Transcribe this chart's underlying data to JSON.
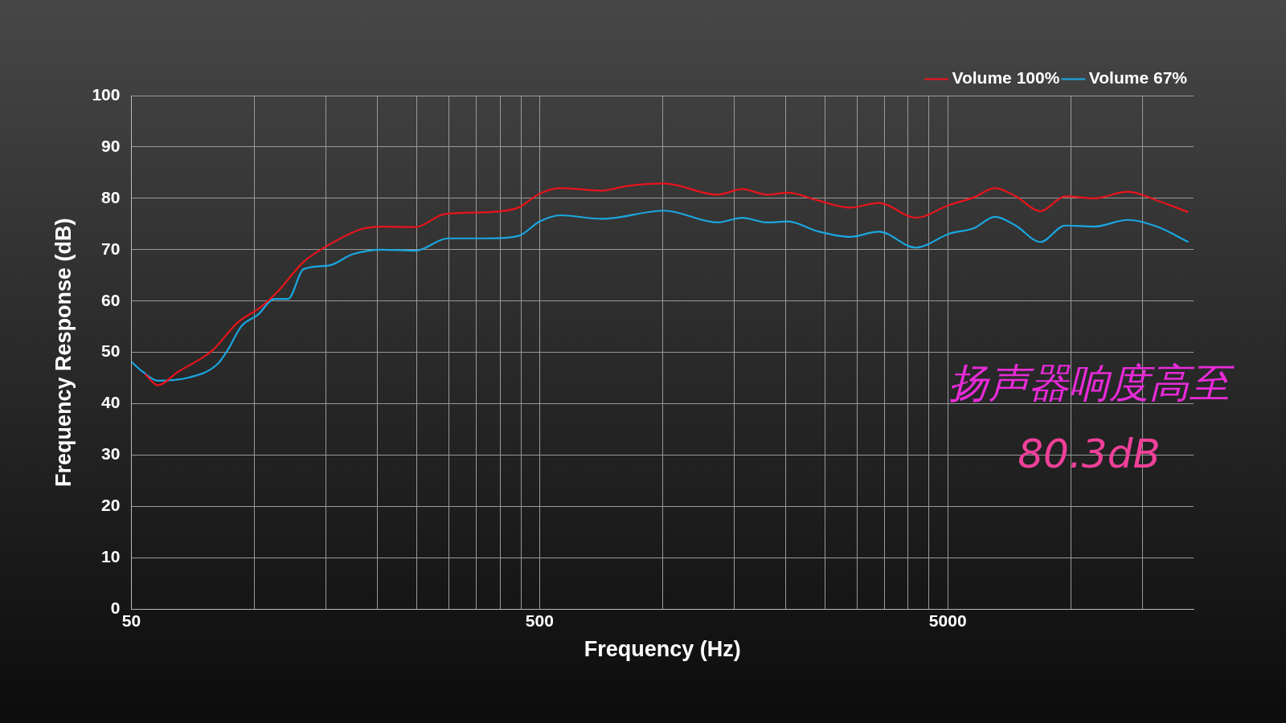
{
  "chart_data": {
    "type": "line",
    "xlabel": "Frequency (Hz)",
    "ylabel": "Frequency Response (dB)",
    "log": "x",
    "grid": true,
    "legend": "top right",
    "marker": "none",
    "xlim": [
      50,
      20000
    ],
    "xticks": [
      50,
      {
        "value": 100,
        "label": null
      },
      {
        "value": 150,
        "label": null
      },
      {
        "value": 200,
        "label": null
      },
      {
        "value": 250,
        "label": null
      },
      {
        "value": 300,
        "label": null
      },
      {
        "value": 350,
        "label": null
      },
      {
        "value": 400,
        "label": null
      },
      {
        "value": 450,
        "label": null
      },
      500,
      {
        "value": 1000,
        "label": null
      },
      {
        "value": 1500,
        "label": null
      },
      {
        "value": 2000,
        "label": null
      },
      {
        "value": 2500,
        "label": null
      },
      {
        "value": 3000,
        "label": null
      },
      {
        "value": 3500,
        "label": null
      },
      {
        "value": 4000,
        "label": null
      },
      {
        "value": 4500,
        "label": null
      },
      5000,
      {
        "value": 10000,
        "label": null
      },
      {
        "value": 15000,
        "label": null
      }
    ],
    "ylim": [
      0,
      100
    ],
    "yticks": [
      0,
      10,
      20,
      30,
      40,
      50,
      60,
      70,
      80,
      90,
      100
    ],
    "annotations": [
      "扬声器响度高至",
      "80.3dB"
    ],
    "series": [
      {
        "name": "Volume 100%",
        "color": "#e8141c",
        "x": [
          54,
          58,
          65,
          79,
          91,
          104,
          114,
          132,
          152,
          183,
          206,
          248,
          292,
          369,
          444,
          500,
          562,
          711,
          817,
          1010,
          1364,
          1568,
          1804,
          2030,
          2396,
          2878,
          3390,
          4178,
          5038,
          5799,
          6522,
          7332,
          8428,
          9700,
          11440,
          13800,
          16270,
          19410
        ],
        "values": [
          45.8,
          43.6,
          46.2,
          50.4,
          55.8,
          58.9,
          61.8,
          67.6,
          70.9,
          74.0,
          74.5,
          74.4,
          76.9,
          77.3,
          78.2,
          80.9,
          82.0,
          81.5,
          82.4,
          82.9,
          80.7,
          81.8,
          80.7,
          81.1,
          79.6,
          78.2,
          79.1,
          76.2,
          78.7,
          80.2,
          82.0,
          80.4,
          77.5,
          80.4,
          80.0,
          81.3,
          79.6,
          77.3
        ]
      },
      {
        "name": "Volume 67%",
        "color": "#1aa7e0",
        "x": [
          50,
          53,
          58,
          69,
          81,
          86,
          93,
          102,
          112,
          121,
          132,
          152,
          174,
          206,
          248,
          298,
          369,
          444,
          500,
          562,
          711,
          1010,
          1364,
          1568,
          1804,
          2030,
          2396,
          2878,
          3390,
          4178,
          5038,
          5799,
          6522,
          7332,
          8428,
          9700,
          11440,
          13800,
          16270,
          19410
        ],
        "values": [
          48.2,
          46.4,
          44.5,
          45.1,
          47.6,
          50.4,
          55.1,
          57.3,
          60.4,
          60.4,
          66.2,
          66.9,
          69.1,
          70.0,
          69.8,
          72.2,
          72.2,
          72.7,
          75.5,
          76.7,
          76.0,
          77.6,
          75.3,
          76.2,
          75.3,
          75.5,
          73.6,
          72.5,
          73.5,
          70.4,
          73.1,
          74.2,
          76.4,
          74.7,
          71.5,
          74.7,
          74.5,
          75.8,
          74.5,
          71.5
        ]
      }
    ]
  }
}
